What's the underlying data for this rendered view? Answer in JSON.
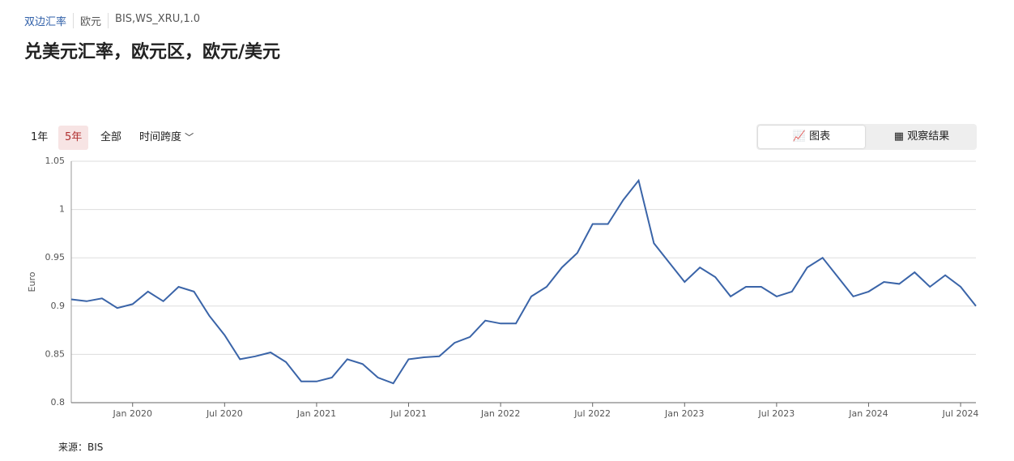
{
  "header": {
    "breadcrumb": [
      "双边汇率",
      "欧元",
      "BIS,WS_XRU,1.0"
    ]
  },
  "controls": {
    "ranges": [
      "1年",
      "5年",
      "全部"
    ],
    "span": "时间跨度"
  },
  "tabs": [
    "图表",
    "观察结果"
  ],
  "source": "来源：BIS",
  "chart_data": {
    "type": "line",
    "title": "兑美元汇率，欧元区，欧元/美元",
    "y_label": "Euro",
    "color": "#3a64a8",
    "grid": true,
    "x": [
      "2019-09",
      "2019-10",
      "2019-11",
      "2019-12",
      "2020-01",
      "2020-02",
      "2020-03",
      "2020-04",
      "2020-05",
      "2020-06",
      "2020-07",
      "2020-08",
      "2020-09",
      "2020-10",
      "2020-11",
      "2020-12",
      "2021-01",
      "2021-02",
      "2021-03",
      "2021-04",
      "2021-05",
      "2021-06",
      "2021-07",
      "2021-08",
      "2021-09",
      "2021-10",
      "2021-11",
      "2021-12",
      "2022-01",
      "2022-02",
      "2022-03",
      "2022-04",
      "2022-05",
      "2022-06",
      "2022-07",
      "2022-08",
      "2022-09",
      "2022-10",
      "2022-11",
      "2022-12",
      "2023-01",
      "2023-02",
      "2023-03",
      "2023-04",
      "2023-05",
      "2023-06",
      "2023-07",
      "2023-08",
      "2023-09",
      "2023-10",
      "2023-11",
      "2023-12",
      "2024-01",
      "2024-02",
      "2024-03",
      "2024-04",
      "2024-05",
      "2024-06",
      "2024-07",
      "2024-08"
    ],
    "values": [
      0.907,
      0.905,
      0.908,
      0.898,
      0.902,
      0.915,
      0.905,
      0.92,
      0.915,
      0.89,
      0.87,
      0.845,
      0.848,
      0.852,
      0.842,
      0.822,
      0.822,
      0.826,
      0.845,
      0.84,
      0.826,
      0.82,
      0.845,
      0.847,
      0.848,
      0.862,
      0.868,
      0.885,
      0.882,
      0.882,
      0.91,
      0.92,
      0.94,
      0.955,
      0.985,
      0.985,
      1.01,
      1.03,
      0.965,
      0.945,
      0.925,
      0.94,
      0.93,
      0.91,
      0.92,
      0.92,
      0.91,
      0.915,
      0.94,
      0.95,
      0.93,
      0.91,
      0.915,
      0.925,
      0.923,
      0.935,
      0.92,
      0.932,
      0.92,
      0.9
    ],
    "xlim": [
      "2019-09",
      "2024-08"
    ],
    "xticks": [
      {
        "value": "2020-01",
        "label": "Jan 2020"
      },
      {
        "value": "2020-07",
        "label": "Jul 2020"
      },
      {
        "value": "2021-01",
        "label": "Jan 2021"
      },
      {
        "value": "2021-07",
        "label": "Jul 2021"
      },
      {
        "value": "2022-01",
        "label": "Jan 2022"
      },
      {
        "value": "2022-07",
        "label": "Jul 2022"
      },
      {
        "value": "2023-01",
        "label": "Jan 2023"
      },
      {
        "value": "2023-07",
        "label": "Jul 2023"
      },
      {
        "value": "2024-01",
        "label": "Jan 2024"
      },
      {
        "value": "2024-07",
        "label": "Jul 2024"
      }
    ],
    "ylim": [
      0.8,
      1.05
    ],
    "yticks": [
      0.8,
      0.85,
      0.9,
      0.95,
      1,
      1.05
    ]
  }
}
